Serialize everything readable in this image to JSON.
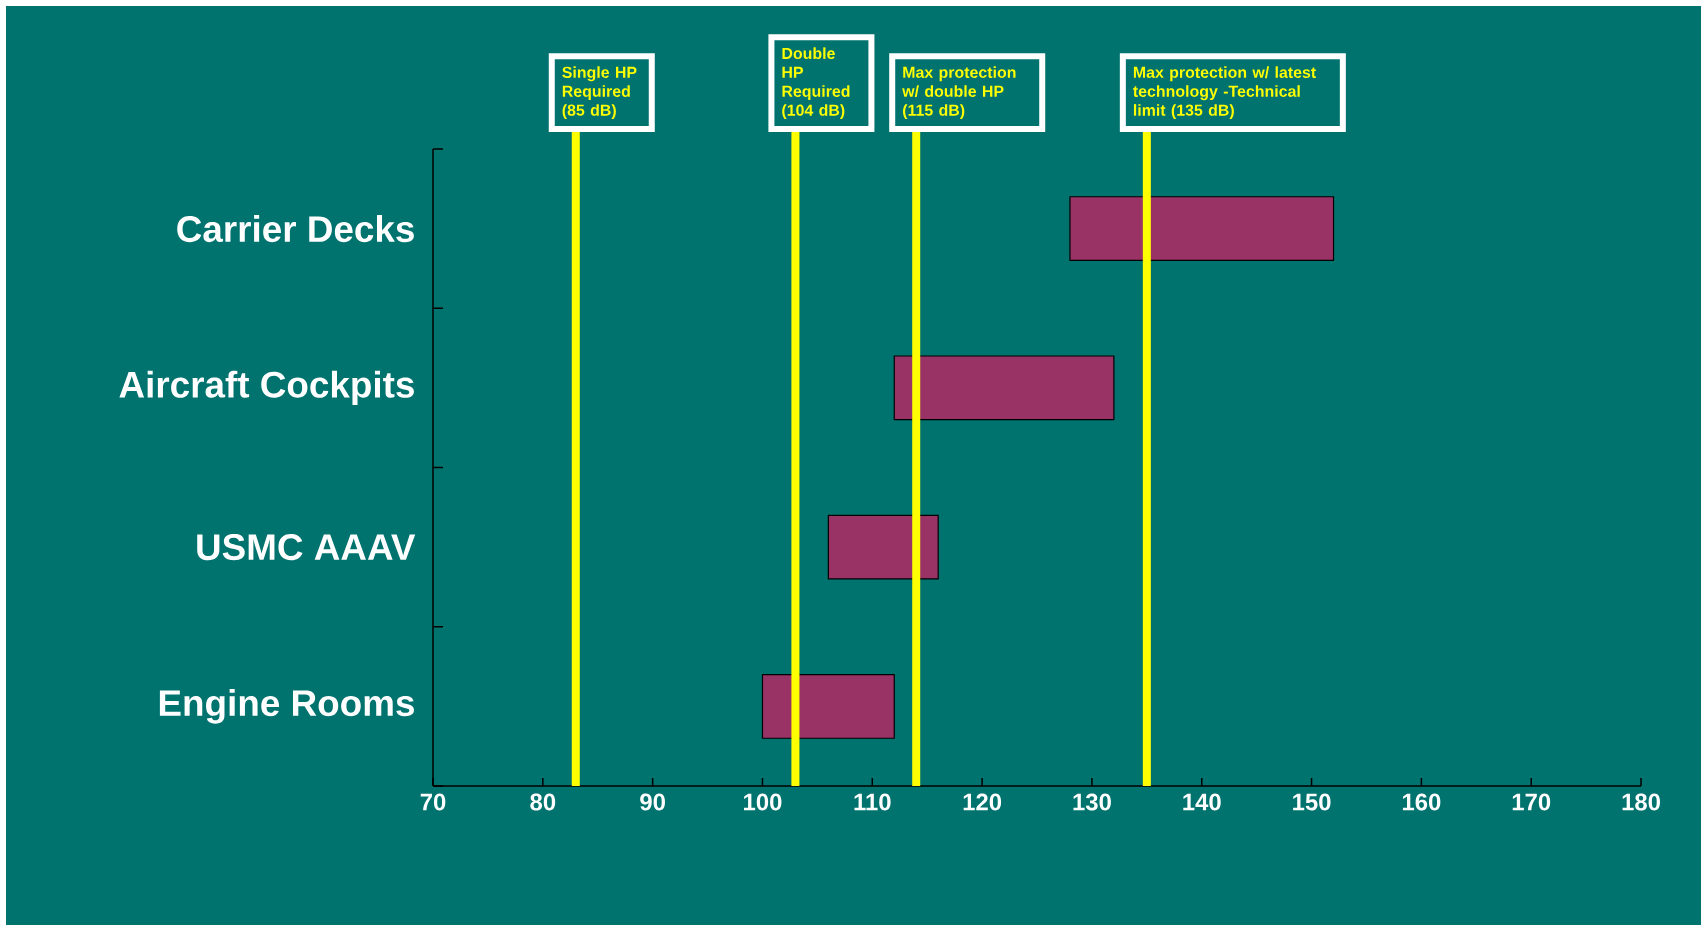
{
  "chart_data": {
    "type": "bar",
    "orientation": "horizontal",
    "categories": [
      "Carrier Decks",
      "Aircraft Cockpits",
      "USMC AAAV",
      "Engine Rooms"
    ],
    "base": [
      128,
      112,
      106,
      100
    ],
    "values": [
      24,
      20,
      10,
      12
    ],
    "color": "#993366",
    "xlim": [
      70,
      180
    ],
    "xticks": [
      70,
      80,
      90,
      100,
      110,
      120,
      130,
      140,
      150,
      160,
      170,
      180
    ],
    "ref_lines": [
      {
        "axis": "x",
        "value": 83,
        "label": "Single HP Required (85 dB)",
        "color": "#ffff00"
      },
      {
        "axis": "x",
        "value": 103,
        "label": "Double HP Required (104 dB)",
        "color": "#ffff00"
      },
      {
        "axis": "x",
        "value": 114,
        "label": "Max protection w/ double HP (115 dB)",
        "color": "#ffff00"
      },
      {
        "axis": "x",
        "value": 135,
        "label": "Max protection w/ latest technology -Technical limit (135 dB)",
        "color": "#ffff00"
      }
    ]
  }
}
